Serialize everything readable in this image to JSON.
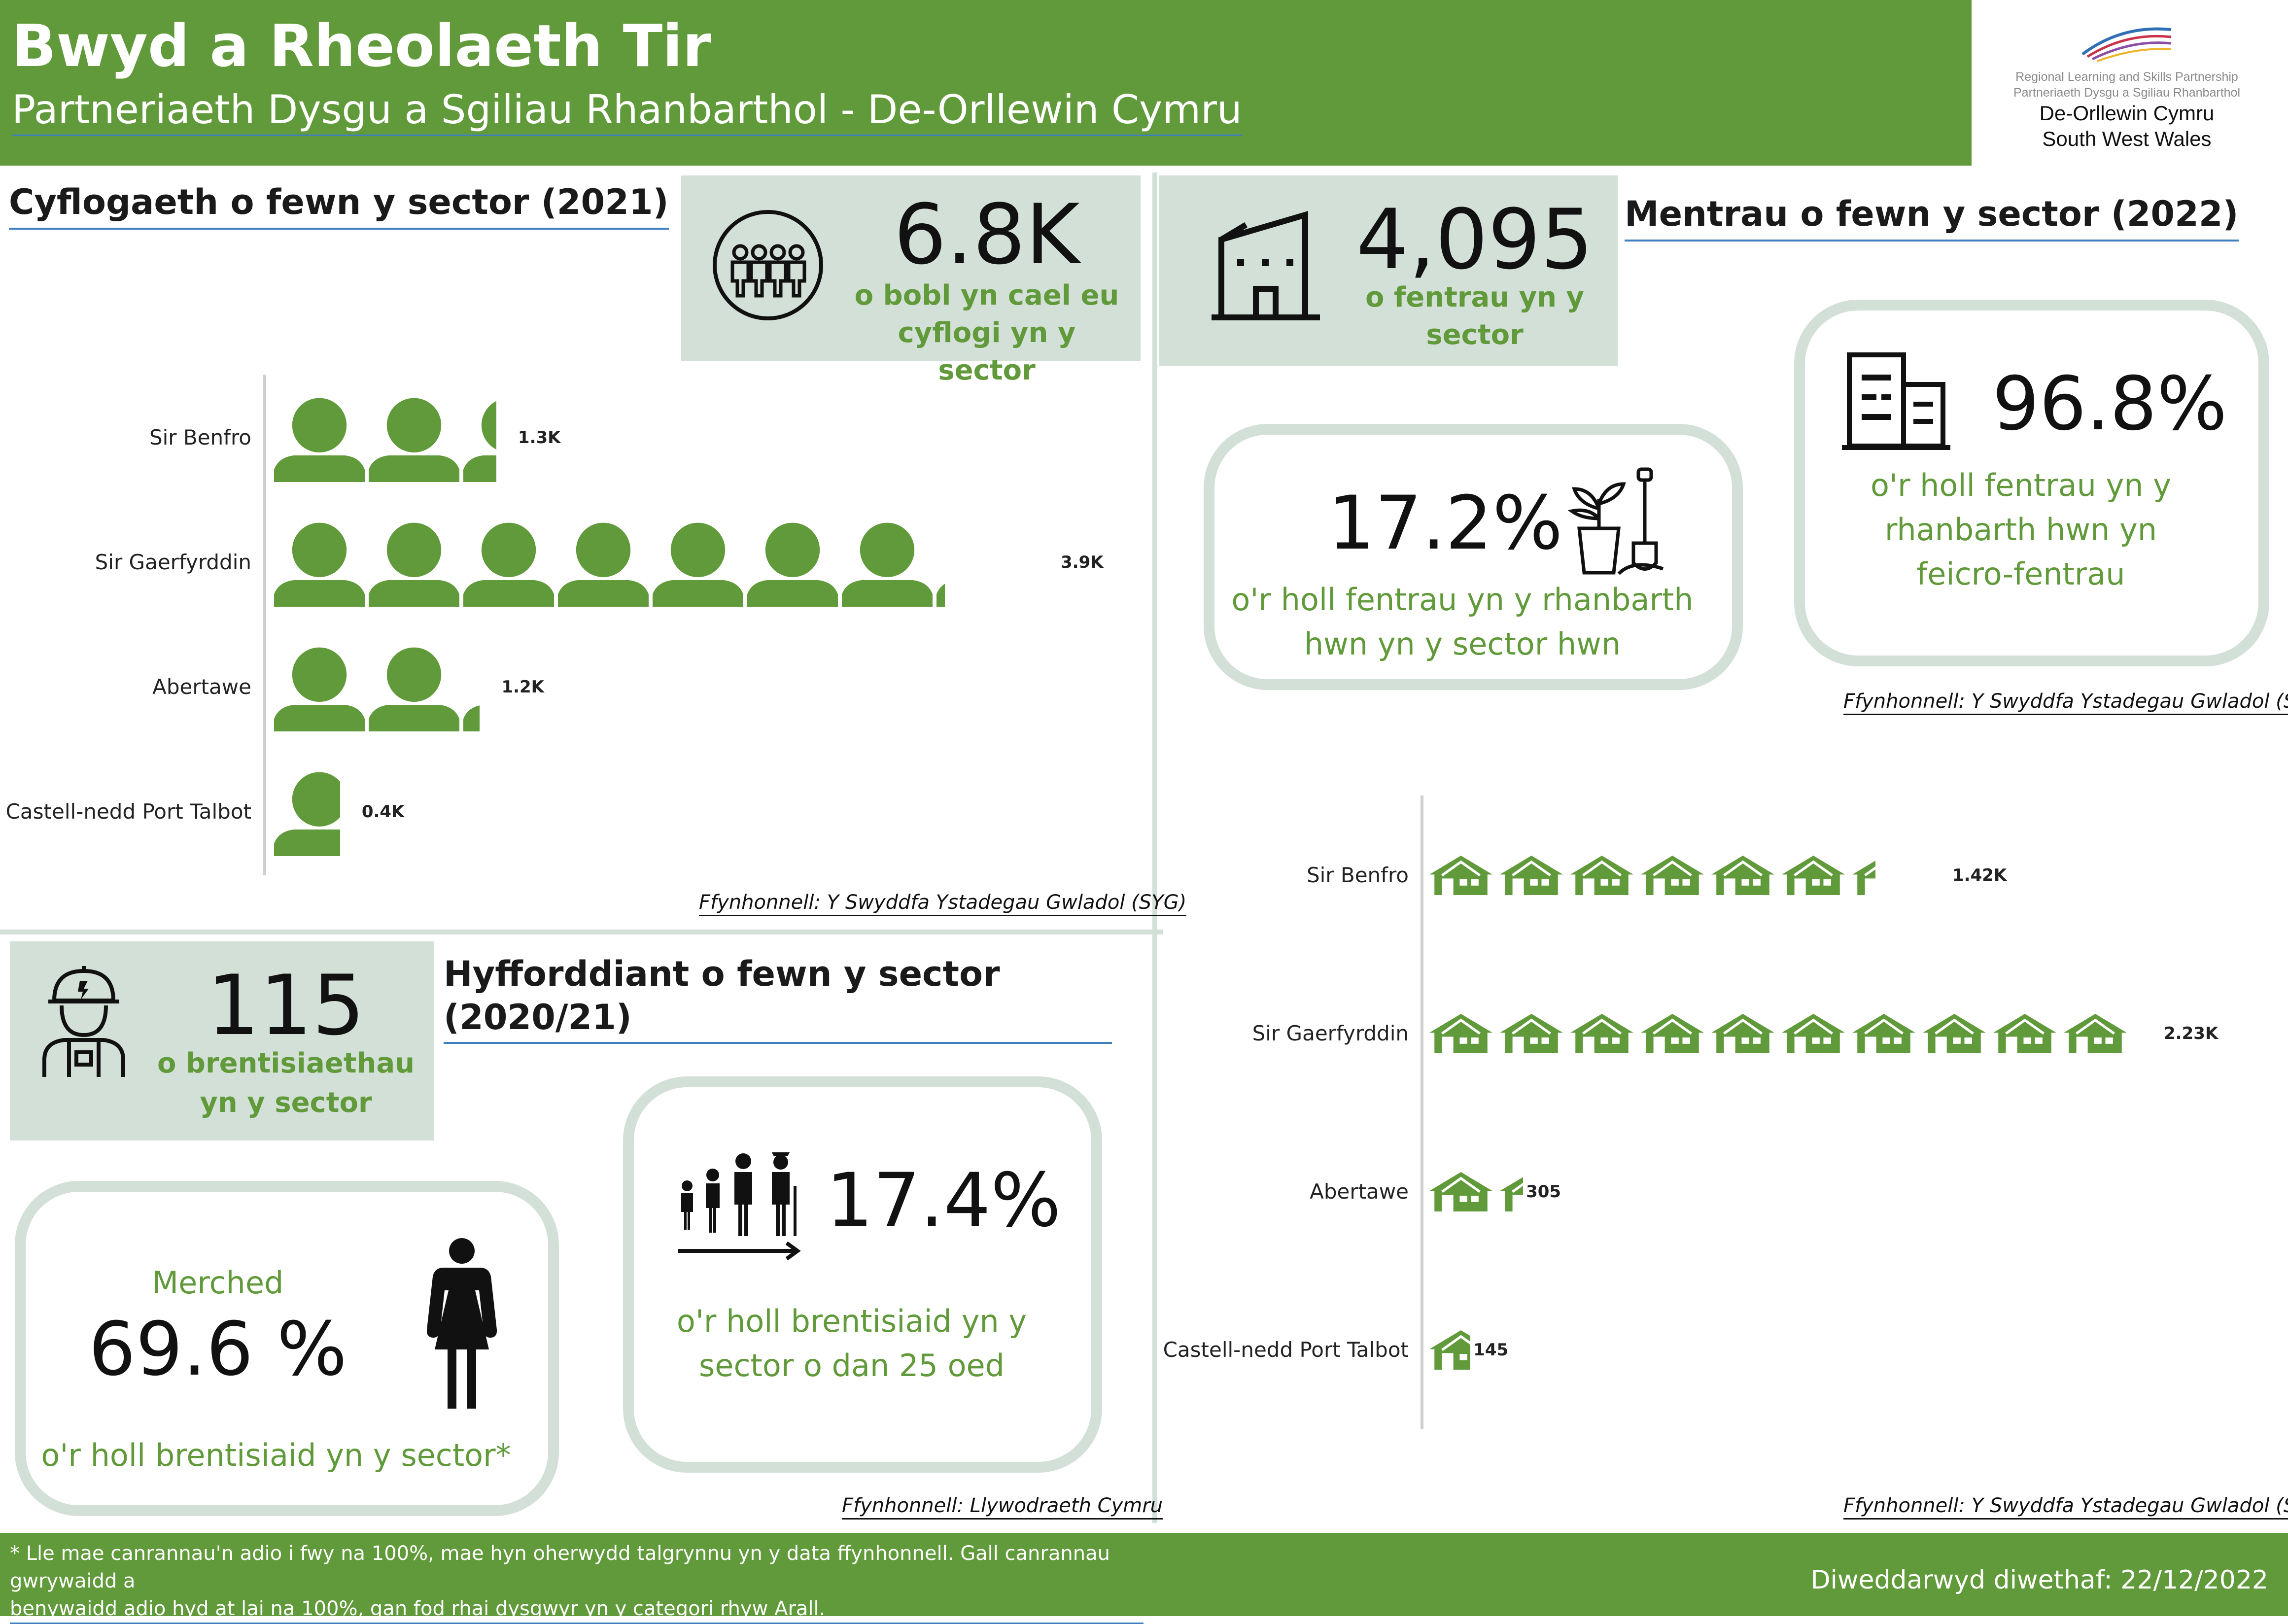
{
  "header": {
    "title": "Bwyd a Rheolaeth Tir",
    "subtitle": "Partneriaeth Dysgu a Sgiliau Rhanbarthol - De-Orllewin Cymru"
  },
  "logo": {
    "line1": "Regional Learning and Skills Partnership",
    "line2": "Partneriaeth Dysgu a Sgiliau Rhanbarthol",
    "line3": "De-Orllewin Cymru",
    "line4": "South West Wales"
  },
  "employment": {
    "title": "Cyflogaeth o fewn y sector (2021)",
    "stat_value": "6.8K",
    "stat_label_1": "o bobl yn cael eu",
    "stat_label_2": "cyflogi yn y sector",
    "source": "Ffynhonnell: Y Swyddfa Ystadegau Gwladol (SYG)"
  },
  "enterprises": {
    "title": "Mentrau o fewn y sector (2022)",
    "stat_value": "4,095",
    "stat_label_1": "o fentrau yn y",
    "stat_label_2": "sector",
    "share_value": "17.2%",
    "share_label_1": "o'r holl fentrau yn y rhanbarth",
    "share_label_2": "hwn yn y sector hwn",
    "micro_value": "96.8%",
    "micro_label_1": "o'r holl fentrau yn y",
    "micro_label_2": "rhanbarth hwn yn",
    "micro_label_3": "feicro-fentrau",
    "source_top": "Ffynhonnell: Y Swyddfa Ystadegau Gwladol (SYG)",
    "source_bottom": "Ffynhonnell: Y Swyddfa Ystadegau Gwladol (SYG)"
  },
  "training": {
    "title_1": "Hyfforddiant o fewn y sector",
    "title_2": "(2020/21)",
    "stat_value": "115",
    "stat_label_1": "o brentisiaethau",
    "stat_label_2": "yn y sector",
    "women_heading": "Merched",
    "women_value": "69.6 %",
    "women_label": "o'r holl brentisiaid yn y sector*",
    "under25_value": "17.4%",
    "under25_label_1": "o'r holl brentisiaid yn y",
    "under25_label_2": "sector o dan 25 oed",
    "source": "Ffynhonnell: Llywodraeth Cymru"
  },
  "footer": {
    "note_1": "* Lle mae canrannau'n adio i fwy na 100%, mae hyn oherwydd talgrynnu yn y data ffynhonnell. Gall canrannau gwrywaidd a",
    "note_2": "benywaidd adio hyd at lai na 100%, gan fod rhai dysgwyr yn y categori rhyw Arall.",
    "updated": "Diweddarwyd diwethaf: 22/12/2022"
  },
  "colors": {
    "accent": "#619a3a",
    "panel": "#d3e0d7",
    "link_blue": "#3f7fc0"
  },
  "chart_data": [
    {
      "type": "bar",
      "categories": [
        "Sir Benfro",
        "Sir Gaerfyrddin",
        "Abertawe",
        "Castell-nedd Port Talbot"
      ],
      "values": [
        1.3,
        3.9,
        1.2,
        0.4
      ],
      "value_labels": [
        "1.3K",
        "3.9K",
        "1.2K",
        "0.4K"
      ],
      "icon": "person-icon",
      "icon_unit": 0.55
    },
    {
      "type": "bar",
      "categories": [
        "Sir Benfro",
        "Sir Gaerfyrddin",
        "Abertawe",
        "Castell-nedd Port Talbot"
      ],
      "values": [
        1420,
        2230,
        305,
        145
      ],
      "value_labels": [
        "1.42K",
        "2.23K",
        "305",
        "145"
      ],
      "icon": "house-icon",
      "icon_unit": 223
    }
  ]
}
